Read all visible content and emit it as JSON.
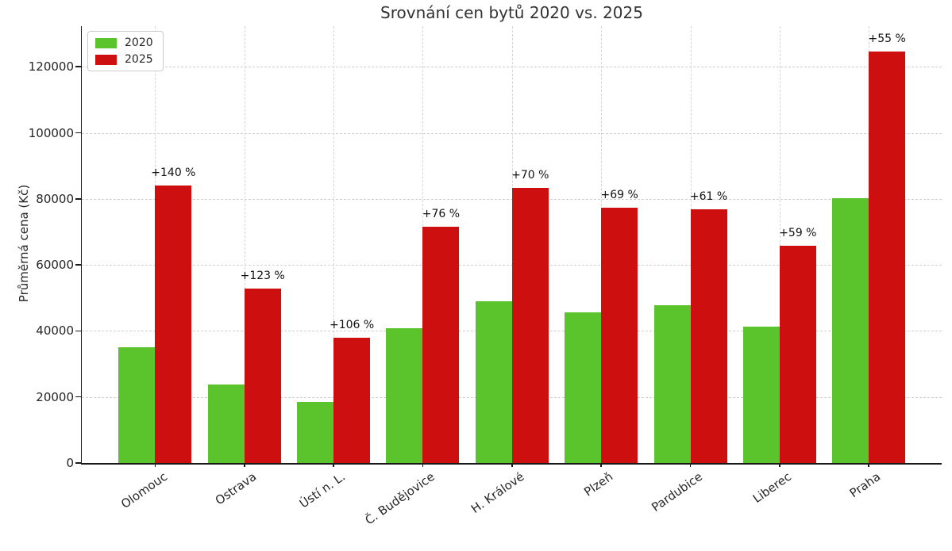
{
  "chart_data": {
    "type": "bar",
    "title": "Srovnání cen bytů 2020 vs. 2025",
    "ylabel": "Průměrná cena (Kč)",
    "xlabel": "",
    "categories": [
      "Olomouc",
      "Ostrava",
      "Ústí n. L.",
      "Č. Budějovice",
      "H. Králové",
      "Plzeň",
      "Pardubice",
      "Liberec",
      "Praha"
    ],
    "series": [
      {
        "name": "2020",
        "color": "#5bc32b",
        "values": [
          35000,
          23700,
          18400,
          40700,
          48900,
          45700,
          47800,
          41400,
          80300
        ]
      },
      {
        "name": "2025",
        "color": "#cd0f0f",
        "values": [
          84000,
          52900,
          37900,
          71600,
          83200,
          77200,
          76900,
          65800,
          124500
        ]
      }
    ],
    "annotations": [
      "+140 %",
      "+123 %",
      "+106 %",
      "+76 %",
      "+70 %",
      "+69 %",
      "+61 %",
      "+59 %",
      "+55 %"
    ],
    "yticks": [
      0,
      20000,
      40000,
      60000,
      80000,
      100000,
      120000
    ],
    "ylim": [
      0,
      132300
    ],
    "grid": true,
    "legend_position": "upper left"
  }
}
